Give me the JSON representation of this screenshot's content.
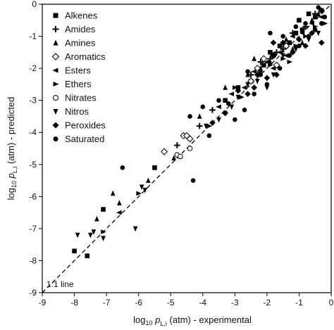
{
  "chart_data": {
    "type": "scatter",
    "xlabel": {
      "prefix": "log",
      "sub": "10",
      "symbol": "p",
      "symsub": "L,i",
      "suffix": " (atm) - experimental"
    },
    "ylabel": {
      "prefix": "log",
      "sub": "10",
      "symbol": "p",
      "symsub": "L,i",
      "suffix": " (atm) - predicted"
    },
    "xlim": [
      -9,
      0
    ],
    "ylim": [
      -9,
      0
    ],
    "xticks": [
      -9,
      -8,
      -7,
      -6,
      -5,
      -4,
      -3,
      -2,
      -1,
      0
    ],
    "yticks": [
      -9,
      -8,
      -7,
      -6,
      -5,
      -4,
      -3,
      -2,
      -1,
      0
    ],
    "reference_line": {
      "label": "1:1 line",
      "slope": 1,
      "intercept": 0,
      "style": "dashed"
    },
    "legend_position": "top-left",
    "series": [
      {
        "name": "Alkenes",
        "marker": "square",
        "points": [
          [
            -8,
            -7.7
          ],
          [
            -7.6,
            -7.85
          ],
          [
            -7.1,
            -6.4
          ],
          [
            -5.5,
            -5.1
          ],
          [
            -3.3,
            -3.0
          ],
          [
            -2.9,
            -2.6
          ],
          [
            -2.5,
            -2.4
          ],
          [
            -2.1,
            -1.9
          ],
          [
            -1.9,
            -1.5
          ],
          [
            -1.6,
            -1.3
          ],
          [
            -1.3,
            -1.2
          ],
          [
            -1.1,
            -0.9
          ],
          [
            -0.9,
            -0.8
          ],
          [
            -0.7,
            -0.3
          ],
          [
            -0.5,
            -0.4
          ],
          [
            -1.8,
            -1.6
          ],
          [
            -1.0,
            -0.5
          ],
          [
            -0.3,
            -0.2
          ]
        ]
      },
      {
        "name": "Amides",
        "marker": "plus",
        "points": [
          [
            -4.8,
            -4.4
          ],
          [
            -4.1,
            -3.8
          ],
          [
            -3.7,
            -3.3
          ],
          [
            -2.2,
            -1.8
          ],
          [
            -1.9,
            -1.7
          ],
          [
            -1.5,
            -1.4
          ],
          [
            -1.2,
            -0.9
          ],
          [
            -0.8,
            -0.7
          ],
          [
            -0.5,
            -0.3
          ],
          [
            -0.3,
            -0.2
          ],
          [
            -1.7,
            -1.5
          ],
          [
            -2.5,
            -2.2
          ]
        ]
      },
      {
        "name": "Amines",
        "marker": "triangle-up",
        "points": [
          [
            -7.3,
            -6.7
          ],
          [
            -6.8,
            -5.9
          ],
          [
            -6.6,
            -6.2
          ],
          [
            -5.7,
            -5.5
          ],
          [
            -4.9,
            -4.8
          ],
          [
            -4.1,
            -3.5
          ],
          [
            -3.3,
            -2.6
          ],
          [
            -2.6,
            -2.2
          ],
          [
            -2.2,
            -2.0
          ],
          [
            -1.9,
            -1.8
          ],
          [
            -1.4,
            -1.1
          ],
          [
            -0.9,
            -1.2
          ],
          [
            -0.6,
            -0.5
          ],
          [
            -0.4,
            -0.3
          ],
          [
            -2.4,
            -1.7
          ],
          [
            -1.2,
            -1.4
          ]
        ]
      },
      {
        "name": "Aromatics",
        "marker": "diamond-open",
        "points": [
          [
            -5.2,
            -4.6
          ],
          [
            -4.6,
            -4.1
          ],
          [
            -4.5,
            -4.1
          ],
          [
            -4.4,
            -4.2
          ],
          [
            -2.3,
            -2.0
          ],
          [
            -2.1,
            -1.7
          ],
          [
            -1.8,
            -1.6
          ],
          [
            -1.4,
            -1.3
          ],
          [
            -1.7,
            -1.9
          ],
          [
            -2.5,
            -2.4
          ]
        ]
      },
      {
        "name": "Esters",
        "marker": "triangle-left",
        "points": [
          [
            -6.6,
            -6.5
          ],
          [
            -3.1,
            -2.8
          ],
          [
            -2.4,
            -2.1
          ],
          [
            -2.0,
            -1.8
          ],
          [
            -1.8,
            -2.0
          ],
          [
            -1.6,
            -1.5
          ],
          [
            -1.2,
            -1.0
          ],
          [
            -0.9,
            -0.9
          ],
          [
            -0.6,
            -0.6
          ],
          [
            -0.3,
            -0.4
          ],
          [
            -2.7,
            -2.6
          ],
          [
            -1.4,
            -1.6
          ],
          [
            -3.5,
            -3.2
          ]
        ]
      },
      {
        "name": "Ethers",
        "marker": "triangle-right",
        "points": [
          [
            -7.1,
            -7.1
          ],
          [
            -6.0,
            -5.9
          ],
          [
            -3.8,
            -3.8
          ],
          [
            -3.0,
            -2.6
          ],
          [
            -2.2,
            -2.1
          ],
          [
            -1.9,
            -1.9
          ],
          [
            -1.5,
            -1.7
          ],
          [
            -1.1,
            -1.3
          ],
          [
            -0.8,
            -1.0
          ],
          [
            -0.5,
            -0.7
          ],
          [
            -0.2,
            -0.6
          ],
          [
            -2.8,
            -2.9
          ],
          [
            -1.3,
            -1.8
          ]
        ]
      },
      {
        "name": "Nitrates",
        "marker": "circle-open",
        "points": [
          [
            -4.8,
            -4.7
          ],
          [
            -4.7,
            -4.75
          ],
          [
            -4.4,
            -4.5
          ]
        ]
      },
      {
        "name": "Nitros",
        "marker": "triangle-down",
        "points": [
          [
            -7.9,
            -7.2
          ],
          [
            -7.5,
            -7.2
          ],
          [
            -7.4,
            -7.1
          ],
          [
            -7.1,
            -7.3
          ],
          [
            -6.1,
            -7.0
          ],
          [
            -5.9,
            -5.7
          ],
          [
            -5.8,
            -5.8
          ],
          [
            -3.9,
            -3.8
          ],
          [
            -3.5,
            -3.6
          ],
          [
            -3.1,
            -3.2
          ],
          [
            -2.9,
            -2.9
          ],
          [
            -2.6,
            -2.5
          ],
          [
            -2.3,
            -2.4
          ],
          [
            -1.8,
            -2.2
          ],
          [
            -1.5,
            -1.6
          ],
          [
            -1.1,
            -1.4
          ],
          [
            -0.7,
            -1.1
          ],
          [
            -0.4,
            -0.9
          ],
          [
            -2.0,
            -2.6
          ],
          [
            -3.3,
            -3.4
          ]
        ]
      },
      {
        "name": "Peroxides",
        "marker": "diamond",
        "points": [
          [
            -3.7,
            -3.7
          ],
          [
            -3.3,
            -3.4
          ],
          [
            -2.9,
            -2.7
          ],
          [
            -2.6,
            -2.8
          ],
          [
            -2.3,
            -2.2
          ],
          [
            -2.0,
            -2.3
          ],
          [
            -1.7,
            -2.2
          ],
          [
            -1.5,
            -1.2
          ],
          [
            -1.2,
            -1.5
          ],
          [
            -1.0,
            -1.1
          ],
          [
            -0.8,
            -1.3
          ],
          [
            -0.6,
            -0.9
          ],
          [
            -0.3,
            -1.2
          ],
          [
            -2.4,
            -2.6
          ],
          [
            -1.8,
            -1.2
          ]
        ]
      },
      {
        "name": "Saturated",
        "marker": "circle",
        "points": [
          [
            -6.5,
            -5.1
          ],
          [
            -4.3,
            -5.5
          ],
          [
            -4.4,
            -3.5
          ],
          [
            -4.0,
            -3.2
          ],
          [
            -3.5,
            -3.0
          ],
          [
            -3.2,
            -3.1
          ],
          [
            -3.0,
            -3.6
          ],
          [
            -2.7,
            -3.3
          ],
          [
            -2.4,
            -2.8
          ],
          [
            -2.2,
            -2.2
          ],
          [
            -2.0,
            -2.5
          ],
          [
            -1.8,
            -1.6
          ],
          [
            -1.6,
            -2.0
          ],
          [
            -1.5,
            -1.0
          ],
          [
            -1.3,
            -1.6
          ],
          [
            -1.1,
            -0.7
          ],
          [
            -1.0,
            -1.3
          ],
          [
            -0.8,
            -0.6
          ],
          [
            -0.7,
            -1.0
          ],
          [
            -0.5,
            -0.8
          ],
          [
            -0.4,
            -0.1
          ],
          [
            -0.3,
            -0.6
          ],
          [
            -0.2,
            -0.4
          ],
          [
            -2.6,
            -2.1
          ],
          [
            -1.9,
            -0.9
          ],
          [
            -3.8,
            -4.1
          ]
        ]
      }
    ]
  }
}
